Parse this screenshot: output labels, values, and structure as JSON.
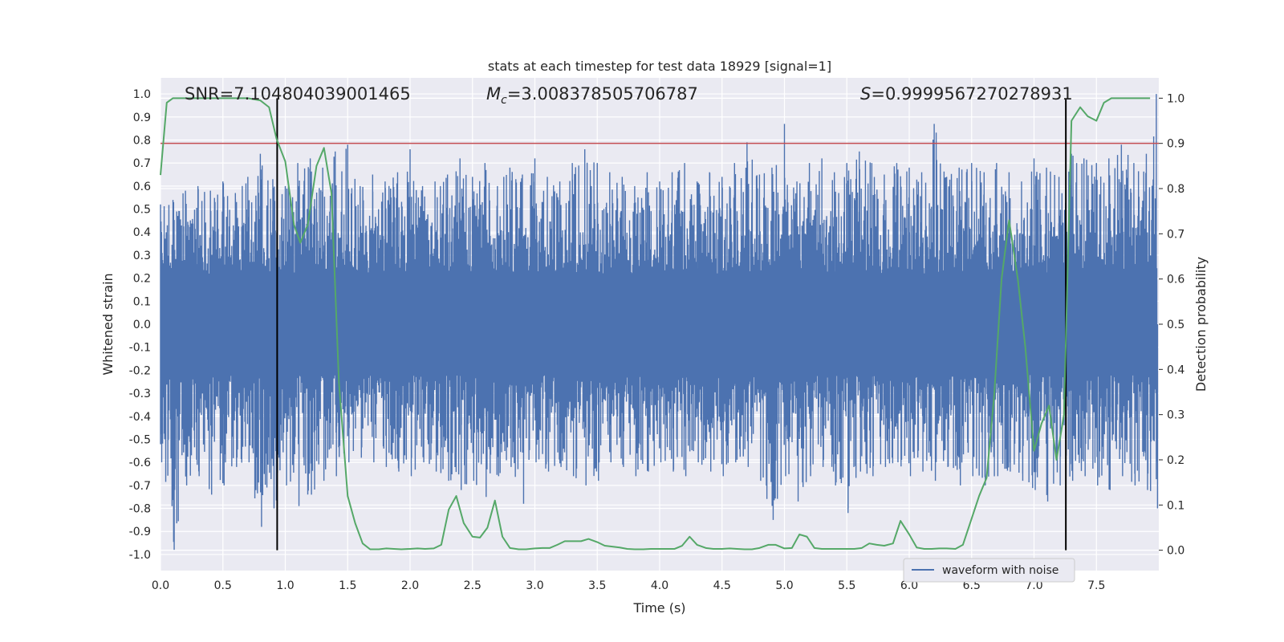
{
  "chart_data": {
    "type": "line",
    "title": "stats at each timestep for test data 18929 [signal=1]",
    "xlabel": "Time (s)",
    "ylabel": "Whitened strain",
    "y2label": "Detection probability",
    "xlim": [
      0,
      8
    ],
    "ylim": [
      -1.07,
      1.07
    ],
    "y2lim": [
      -0.045,
      1.045
    ],
    "xticks": [
      "0.0",
      "0.5",
      "1.0",
      "1.5",
      "2.0",
      "2.5",
      "3.0",
      "3.5",
      "4.0",
      "4.5",
      "5.0",
      "5.5",
      "6.0",
      "6.5",
      "7.0",
      "7.5"
    ],
    "yticks": [
      "1.0",
      "0.9",
      "0.8",
      "0.7",
      "0.6",
      "0.5",
      "0.4",
      "0.3",
      "0.2",
      "0.1",
      "0.0",
      "-0.1",
      "-0.2",
      "-0.3",
      "-0.4",
      "-0.5",
      "-0.6",
      "-0.7",
      "-0.8",
      "-0.9",
      "-1.0"
    ],
    "y2ticks": [
      "1.0",
      "0.9",
      "0.8",
      "0.7",
      "0.6",
      "0.5",
      "0.4",
      "0.3",
      "0.2",
      "0.1",
      "0.0"
    ],
    "annotations": {
      "snr": "SNR=7.104804039001465",
      "mc": "=3.008378505706787",
      "mc_symbol": "M",
      "mc_subscript": "c",
      "s": "=0.9999567270278931",
      "s_symbol": "S"
    },
    "threshold_line": {
      "axis": "y2",
      "value": 0.9,
      "color": "#c44e52"
    },
    "vertical_lines": [
      0.935,
      7.255
    ],
    "legend": {
      "label": "waveform with noise",
      "position": "lower-right"
    },
    "series": [
      {
        "name": "waveform with noise",
        "axis": "y",
        "color": "#4c72b0",
        "envelope_x": [
          0.0,
          0.1,
          0.2,
          0.3,
          0.4,
          0.5,
          0.6,
          0.7,
          0.8,
          0.9,
          1.0,
          1.1,
          1.2,
          1.3,
          1.4,
          1.5,
          1.6,
          1.7,
          1.8,
          1.9,
          2.0,
          2.1,
          2.2,
          2.3,
          2.4,
          2.5,
          2.6,
          2.7,
          2.8,
          2.9,
          3.0,
          3.1,
          3.2,
          3.3,
          3.4,
          3.5,
          3.6,
          3.7,
          3.8,
          3.9,
          4.0,
          4.1,
          4.2,
          4.3,
          4.4,
          4.5,
          4.6,
          4.7,
          4.8,
          4.9,
          5.0,
          5.1,
          5.2,
          5.3,
          5.4,
          5.5,
          5.6,
          5.7,
          5.8,
          5.9,
          6.0,
          6.1,
          6.2,
          6.3,
          6.4,
          6.5,
          6.6,
          6.7,
          6.8,
          6.9,
          7.0,
          7.1,
          7.2,
          7.3,
          7.4,
          7.5,
          7.6,
          7.7,
          7.8,
          7.9,
          7.98
        ],
        "envelope_upper": [
          0.52,
          0.54,
          0.58,
          0.6,
          0.58,
          0.62,
          0.57,
          0.64,
          0.74,
          0.63,
          0.6,
          0.7,
          0.72,
          0.68,
          0.75,
          0.78,
          0.6,
          0.65,
          0.62,
          0.66,
          0.76,
          0.6,
          0.62,
          0.65,
          0.72,
          0.64,
          0.7,
          0.6,
          0.68,
          0.65,
          0.72,
          0.64,
          0.62,
          0.7,
          0.76,
          0.7,
          0.66,
          0.64,
          0.6,
          0.66,
          0.62,
          0.66,
          0.7,
          0.62,
          0.66,
          0.64,
          0.7,
          0.79,
          0.65,
          0.68,
          0.87,
          0.62,
          0.7,
          0.72,
          0.66,
          0.7,
          0.75,
          0.7,
          0.65,
          0.7,
          0.68,
          0.66,
          0.87,
          0.64,
          0.68,
          0.7,
          0.66,
          0.7,
          0.66,
          0.62,
          0.72,
          0.68,
          0.64,
          0.74,
          0.72,
          0.7,
          0.72,
          0.78,
          0.7,
          0.74,
          1.0
        ],
        "envelope_lower": [
          -0.6,
          -0.98,
          -0.7,
          -0.66,
          -0.74,
          -0.7,
          -0.62,
          -0.6,
          -0.88,
          -0.8,
          -0.7,
          -0.79,
          -0.74,
          -0.68,
          -0.66,
          -0.6,
          -0.58,
          -0.6,
          -0.62,
          -0.64,
          -0.66,
          -0.6,
          -0.64,
          -0.68,
          -0.72,
          -0.68,
          -0.75,
          -0.66,
          -0.62,
          -0.78,
          -0.6,
          -0.64,
          -0.62,
          -0.66,
          -0.7,
          -0.68,
          -0.6,
          -0.62,
          -0.66,
          -0.64,
          -0.6,
          -0.64,
          -0.66,
          -0.6,
          -0.64,
          -0.66,
          -0.6,
          -0.62,
          -0.68,
          -0.85,
          -0.66,
          -0.77,
          -0.66,
          -0.62,
          -0.7,
          -0.82,
          -0.64,
          -0.66,
          -0.62,
          -0.6,
          -0.66,
          -0.64,
          -0.68,
          -0.62,
          -0.7,
          -0.66,
          -0.7,
          -0.66,
          -0.64,
          -0.68,
          -0.72,
          -0.77,
          -0.7,
          -0.68,
          -0.66,
          -0.7,
          -0.72,
          -0.66,
          -0.7,
          -0.72,
          -0.8
        ]
      },
      {
        "name": "detection probability",
        "axis": "y2",
        "color": "#55a868",
        "x": [
          0.0,
          0.05,
          0.1,
          0.2,
          0.3,
          0.4,
          0.5,
          0.6,
          0.7,
          0.8,
          0.87,
          0.93,
          1.0,
          1.07,
          1.12,
          1.18,
          1.25,
          1.31,
          1.37,
          1.43,
          1.5,
          1.56,
          1.62,
          1.68,
          1.75,
          1.81,
          1.87,
          1.93,
          2.0,
          2.06,
          2.12,
          2.19,
          2.25,
          2.31,
          2.37,
          2.43,
          2.5,
          2.56,
          2.62,
          2.68,
          2.74,
          2.8,
          2.87,
          2.93,
          3.0,
          3.06,
          3.12,
          3.18,
          3.24,
          3.31,
          3.37,
          3.43,
          3.5,
          3.56,
          3.62,
          3.68,
          3.74,
          3.8,
          3.87,
          3.93,
          4.0,
          4.06,
          4.12,
          4.18,
          4.24,
          4.3,
          4.37,
          4.43,
          4.5,
          4.56,
          4.62,
          4.68,
          4.74,
          4.8,
          4.87,
          4.93,
          5.0,
          5.06,
          5.12,
          5.18,
          5.24,
          5.3,
          5.37,
          5.43,
          5.5,
          5.56,
          5.62,
          5.68,
          5.74,
          5.8,
          5.87,
          5.93,
          6.0,
          6.06,
          6.12,
          6.18,
          6.24,
          6.3,
          6.37,
          6.43,
          6.5,
          6.56,
          6.62,
          6.68,
          6.74,
          6.8,
          6.87,
          6.93,
          7.0,
          7.06,
          7.12,
          7.18,
          7.24,
          7.3,
          7.37,
          7.43,
          7.5,
          7.56,
          7.62,
          7.68,
          7.74,
          7.8,
          7.87,
          7.93
        ],
        "values": [
          0.83,
          0.99,
          1.0,
          1.0,
          1.0,
          1.0,
          1.0,
          1.0,
          1.0,
          0.995,
          0.98,
          0.91,
          0.86,
          0.72,
          0.68,
          0.72,
          0.85,
          0.89,
          0.79,
          0.37,
          0.12,
          0.06,
          0.015,
          0.002,
          0.002,
          0.004,
          0.003,
          0.002,
          0.003,
          0.004,
          0.003,
          0.004,
          0.012,
          0.09,
          0.12,
          0.06,
          0.03,
          0.028,
          0.05,
          0.11,
          0.03,
          0.005,
          0.002,
          0.002,
          0.004,
          0.005,
          0.005,
          0.012,
          0.02,
          0.02,
          0.02,
          0.025,
          0.018,
          0.01,
          0.008,
          0.006,
          0.003,
          0.002,
          0.002,
          0.003,
          0.003,
          0.003,
          0.003,
          0.01,
          0.03,
          0.012,
          0.005,
          0.003,
          0.003,
          0.004,
          0.003,
          0.002,
          0.002,
          0.005,
          0.012,
          0.012,
          0.004,
          0.005,
          0.035,
          0.03,
          0.005,
          0.003,
          0.003,
          0.003,
          0.003,
          0.003,
          0.005,
          0.015,
          0.012,
          0.01,
          0.015,
          0.065,
          0.035,
          0.006,
          0.003,
          0.003,
          0.004,
          0.004,
          0.003,
          0.012,
          0.07,
          0.12,
          0.16,
          0.34,
          0.6,
          0.73,
          0.6,
          0.45,
          0.22,
          0.28,
          0.32,
          0.2,
          0.3,
          0.95,
          0.98,
          0.96,
          0.95,
          0.99,
          1.0,
          1.0,
          1.0,
          1.0,
          1.0,
          1.0
        ]
      }
    ]
  }
}
